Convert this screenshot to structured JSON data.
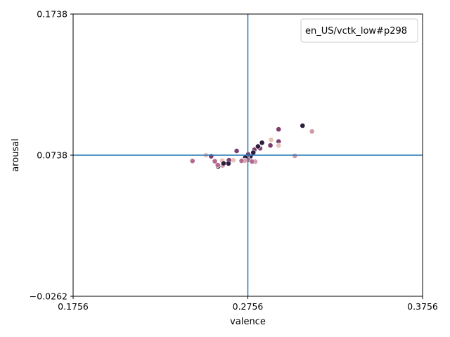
{
  "chart_data": {
    "type": "scatter",
    "xlabel": "valence",
    "ylabel": "arousal",
    "xlim": [
      0.1756,
      0.3756
    ],
    "ylim": [
      -0.0262,
      0.1738
    ],
    "xticks": [
      "0.1756",
      "0.2756",
      "0.3756"
    ],
    "yticks": [
      "−0.0262",
      "0.0738",
      "0.1738"
    ],
    "reference_lines": {
      "x": 0.2756,
      "y": 0.0738,
      "color": "#1f77b4"
    },
    "legend": {
      "title": "en_US/vctk_low#p298",
      "placement": "top-right"
    },
    "grid": false,
    "palette": [
      "#e8c2b8",
      "#d49aa6",
      "#b36a8e",
      "#7f3c6e",
      "#2d1e3e"
    ],
    "points": [
      {
        "x": 0.3069,
        "y": 0.0947,
        "c": 4
      },
      {
        "x": 0.3123,
        "y": 0.0906,
        "c": 1
      },
      {
        "x": 0.2932,
        "y": 0.0921,
        "c": 3
      },
      {
        "x": 0.2932,
        "y": 0.0835,
        "c": 3
      },
      {
        "x": 0.2889,
        "y": 0.0847,
        "c": 0
      },
      {
        "x": 0.2885,
        "y": 0.0807,
        "c": 3
      },
      {
        "x": 0.2932,
        "y": 0.0806,
        "c": 0
      },
      {
        "x": 0.3025,
        "y": 0.0733,
        "c": 1
      },
      {
        "x": 0.2837,
        "y": 0.0826,
        "c": 4
      },
      {
        "x": 0.2826,
        "y": 0.0786,
        "c": 3
      },
      {
        "x": 0.2814,
        "y": 0.08,
        "c": 4
      },
      {
        "x": 0.2793,
        "y": 0.0776,
        "c": 3
      },
      {
        "x": 0.2787,
        "y": 0.0756,
        "c": 4
      },
      {
        "x": 0.2771,
        "y": 0.073,
        "c": 4
      },
      {
        "x": 0.2758,
        "y": 0.0744,
        "c": 3
      },
      {
        "x": 0.2759,
        "y": 0.0705,
        "c": 2
      },
      {
        "x": 0.2798,
        "y": 0.0692,
        "c": 1
      },
      {
        "x": 0.278,
        "y": 0.0693,
        "c": 2
      },
      {
        "x": 0.2741,
        "y": 0.0721,
        "c": 4
      },
      {
        "x": 0.2739,
        "y": 0.07,
        "c": 1
      },
      {
        "x": 0.272,
        "y": 0.0698,
        "c": 2
      },
      {
        "x": 0.2673,
        "y": 0.0702,
        "c": 0
      },
      {
        "x": 0.2692,
        "y": 0.0768,
        "c": 3
      },
      {
        "x": 0.2648,
        "y": 0.0702,
        "c": 3
      },
      {
        "x": 0.2645,
        "y": 0.0679,
        "c": 4
      },
      {
        "x": 0.2609,
        "y": 0.07,
        "c": 0
      },
      {
        "x": 0.2612,
        "y": 0.0665,
        "c": 1
      },
      {
        "x": 0.2617,
        "y": 0.068,
        "c": 4
      },
      {
        "x": 0.2586,
        "y": 0.0658,
        "c": 4
      },
      {
        "x": 0.2584,
        "y": 0.0668,
        "c": 2
      },
      {
        "x": 0.2567,
        "y": 0.0695,
        "c": 2
      },
      {
        "x": 0.2546,
        "y": 0.073,
        "c": 3
      },
      {
        "x": 0.2516,
        "y": 0.0738,
        "c": 0
      },
      {
        "x": 0.2439,
        "y": 0.0697,
        "c": 2
      }
    ]
  }
}
